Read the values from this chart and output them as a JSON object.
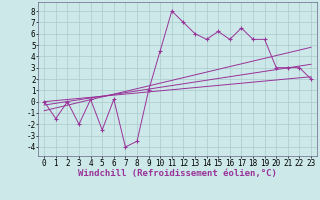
{
  "bg_color": "#cce8e8",
  "grid_color": "#aacccc",
  "line_color": "#993399",
  "xlabel": "Windchill (Refroidissement éolien,°C)",
  "xlabel_fontsize": 6.5,
  "tick_fontsize": 5.5,
  "xmin": -0.5,
  "xmax": 23.5,
  "ymin": -4.8,
  "ymax": 8.8,
  "yticks": [
    -4,
    -3,
    -2,
    -1,
    0,
    1,
    2,
    3,
    4,
    5,
    6,
    7,
    8
  ],
  "xticks": [
    0,
    1,
    2,
    3,
    4,
    5,
    6,
    7,
    8,
    9,
    10,
    11,
    12,
    13,
    14,
    15,
    16,
    17,
    18,
    19,
    20,
    21,
    22,
    23
  ],
  "zigzag_x": [
    0,
    1,
    2,
    3,
    4,
    5,
    6,
    7,
    8,
    9,
    10,
    11,
    12,
    13,
    14,
    15,
    16,
    17,
    18,
    19,
    20,
    21,
    22,
    23
  ],
  "zigzag_y": [
    0.0,
    -1.5,
    0.0,
    -2.0,
    0.2,
    -2.5,
    0.2,
    -4.0,
    -3.5,
    1.0,
    4.5,
    8.0,
    7.0,
    6.0,
    5.5,
    6.2,
    5.5,
    6.5,
    5.5,
    5.5,
    3.0,
    3.0,
    3.0,
    2.0
  ],
  "line1_x": [
    0,
    23
  ],
  "line1_y": [
    -0.8,
    4.8
  ],
  "line2_x": [
    0,
    23
  ],
  "line2_y": [
    -0.3,
    3.3
  ],
  "line3_x": [
    0,
    23
  ],
  "line3_y": [
    0.0,
    2.2
  ]
}
